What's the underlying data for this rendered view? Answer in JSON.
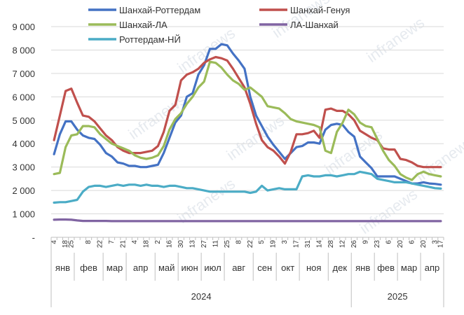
{
  "chart_data": {
    "type": "line",
    "ylim": [
      0,
      9000
    ],
    "y_ticks": [
      {
        "value": 0,
        "label": "-"
      },
      {
        "value": 1000,
        "label": "1 000"
      },
      {
        "value": 2000,
        "label": "2 000"
      },
      {
        "value": 3000,
        "label": "3 000"
      },
      {
        "value": 4000,
        "label": "4 000"
      },
      {
        "value": 5000,
        "label": "5 000"
      },
      {
        "value": 6000,
        "label": "6 000"
      },
      {
        "value": 7000,
        "label": "7 000"
      },
      {
        "value": 8000,
        "label": "8 000"
      },
      {
        "value": 9000,
        "label": "9 000"
      }
    ],
    "grid": "horizontal",
    "legend_position": "top",
    "x_count": 68,
    "day_labels": [
      {
        "i": 0,
        "label": "4"
      },
      {
        "i": 2,
        "label": "18"
      },
      {
        "i": 3,
        "label": "25"
      },
      {
        "i": 6,
        "label": "8"
      },
      {
        "i": 8,
        "label": "22"
      },
      {
        "i": 10,
        "label": "7"
      },
      {
        "i": 12,
        "label": "21"
      },
      {
        "i": 14,
        "label": "4"
      },
      {
        "i": 16,
        "label": "18"
      },
      {
        "i": 18,
        "label": "2"
      },
      {
        "i": 20,
        "label": "16"
      },
      {
        "i": 22,
        "label": "30"
      },
      {
        "i": 24,
        "label": "13"
      },
      {
        "i": 26,
        "label": "27"
      },
      {
        "i": 28,
        "label": "11"
      },
      {
        "i": 30,
        "label": "25"
      },
      {
        "i": 32,
        "label": "8"
      },
      {
        "i": 34,
        "label": "22"
      },
      {
        "i": 36,
        "label": "5"
      },
      {
        "i": 38,
        "label": "19"
      },
      {
        "i": 40,
        "label": "3"
      },
      {
        "i": 42,
        "label": "17"
      },
      {
        "i": 44,
        "label": "31"
      },
      {
        "i": 46,
        "label": "14"
      },
      {
        "i": 48,
        "label": "28"
      },
      {
        "i": 50,
        "label": "12"
      },
      {
        "i": 52,
        "label": "26"
      },
      {
        "i": 54,
        "label": "9"
      },
      {
        "i": 56,
        "label": "23"
      },
      {
        "i": 58,
        "label": "6"
      },
      {
        "i": 60,
        "label": "20"
      },
      {
        "i": 62,
        "label": "6"
      },
      {
        "i": 64,
        "label": "20"
      },
      {
        "i": 66,
        "label": "3"
      },
      {
        "i": 67,
        "label": "17"
      }
    ],
    "months": [
      {
        "label": "янв",
        "start": 0,
        "end": 4
      },
      {
        "label": "фев",
        "start": 4,
        "end": 9
      },
      {
        "label": "мар",
        "start": 9,
        "end": 13
      },
      {
        "label": "апр",
        "start": 13,
        "end": 18
      },
      {
        "label": "май",
        "start": 18,
        "end": 22
      },
      {
        "label": "июн",
        "start": 22,
        "end": 26
      },
      {
        "label": "июл",
        "start": 26,
        "end": 30
      },
      {
        "label": "авг",
        "start": 30,
        "end": 35
      },
      {
        "label": "сен",
        "start": 35,
        "end": 39
      },
      {
        "label": "окт",
        "start": 39,
        "end": 43
      },
      {
        "label": "ноя",
        "start": 43,
        "end": 48
      },
      {
        "label": "дек",
        "start": 48,
        "end": 52
      },
      {
        "label": "янв",
        "start": 52,
        "end": 56
      },
      {
        "label": "фев",
        "start": 56,
        "end": 60
      },
      {
        "label": "мар",
        "start": 60,
        "end": 64
      },
      {
        "label": "апр",
        "start": 64,
        "end": 68
      }
    ],
    "years": [
      {
        "label": "2024",
        "start": 0,
        "end": 52
      },
      {
        "label": "2025",
        "start": 52,
        "end": 68
      }
    ],
    "watermark": "infranews",
    "series": [
      {
        "name": "Шанхай-Роттердам",
        "color": "#4472c4",
        "legend_slot": "left-1",
        "values": [
          3550,
          4400,
          4950,
          4950,
          4600,
          4350,
          4250,
          4200,
          3950,
          3600,
          3450,
          3200,
          3150,
          3050,
          3050,
          3000,
          3000,
          3050,
          3100,
          3600,
          4250,
          4900,
          5200,
          6000,
          6150,
          6950,
          7350,
          8050,
          8050,
          8250,
          8200,
          7850,
          7550,
          7200,
          6000,
          5200,
          4750,
          4300,
          3950,
          3650,
          3350,
          3600,
          3850,
          3900,
          4050,
          4050,
          4000,
          4600,
          4800,
          4850,
          4800,
          4500,
          4300,
          3450,
          3200,
          2950,
          2600,
          2600,
          2600,
          2600,
          2500,
          2400,
          2300,
          2300,
          2350,
          2300,
          2280,
          2250
        ]
      },
      {
        "name": "Шанхай-Генуя",
        "color": "#c0504d",
        "legend_slot": "right-1",
        "values": [
          4150,
          5200,
          6250,
          6350,
          5750,
          5200,
          5150,
          4950,
          4650,
          4350,
          4150,
          3850,
          3700,
          3600,
          3600,
          3600,
          3650,
          3700,
          3900,
          4500,
          5400,
          5650,
          6700,
          6950,
          7050,
          7200,
          7450,
          7600,
          7700,
          7650,
          7550,
          7200,
          6800,
          6400,
          5700,
          4850,
          4150,
          3850,
          3700,
          3450,
          3150,
          3650,
          4400,
          4400,
          4450,
          4550,
          4250,
          5450,
          5500,
          5400,
          5400,
          5250,
          5000,
          4550,
          4400,
          4250,
          4150,
          3800,
          3750,
          3750,
          3350,
          3300,
          3200,
          3050,
          3000,
          3000,
          3000,
          3000
        ]
      },
      {
        "name": "Шанхай-ЛА",
        "color": "#9bbb59",
        "legend_slot": "left-2",
        "values": [
          2700,
          2750,
          3850,
          4350,
          4400,
          4750,
          4750,
          4700,
          4400,
          4200,
          4000,
          3900,
          3800,
          3700,
          3500,
          3400,
          3350,
          3400,
          3500,
          3900,
          4600,
          5050,
          5300,
          5700,
          6000,
          6400,
          6650,
          7500,
          7450,
          7250,
          6950,
          6700,
          6550,
          6300,
          6400,
          6200,
          6000,
          5600,
          5550,
          5500,
          5300,
          5050,
          4950,
          4900,
          4850,
          4800,
          4700,
          3700,
          3600,
          4500,
          4900,
          5450,
          5250,
          4900,
          4750,
          4700,
          4200,
          3700,
          3300,
          3050,
          2700,
          2550,
          2450,
          2700,
          2800,
          2700,
          2650,
          2600
        ]
      },
      {
        "name": "ЛА-Шанхай",
        "color": "#8064a2",
        "legend_slot": "right-2",
        "values": [
          750,
          760,
          760,
          750,
          720,
          700,
          700,
          700,
          700,
          700,
          690,
          690,
          690,
          690,
          690,
          690,
          690,
          690,
          690,
          690,
          690,
          690,
          690,
          690,
          690,
          690,
          690,
          690,
          690,
          690,
          690,
          690,
          690,
          690,
          690,
          690,
          690,
          690,
          690,
          690,
          690,
          690,
          690,
          690,
          690,
          690,
          690,
          690,
          690,
          690,
          690,
          690,
          690,
          690,
          690,
          690,
          690,
          690,
          690,
          690,
          690,
          690,
          690,
          690,
          690,
          690,
          690,
          690
        ]
      },
      {
        "name": "Роттердам-НЙ",
        "color": "#4bacc6",
        "legend_slot": "left-3",
        "values": [
          1480,
          1500,
          1500,
          1550,
          1600,
          1950,
          2150,
          2200,
          2200,
          2150,
          2200,
          2250,
          2200,
          2250,
          2250,
          2200,
          2250,
          2200,
          2200,
          2150,
          2200,
          2200,
          2150,
          2100,
          2100,
          2050,
          2000,
          1950,
          1950,
          1950,
          1950,
          1950,
          1950,
          1950,
          1900,
          1950,
          2200,
          2000,
          2050,
          2100,
          2050,
          2050,
          2050,
          2600,
          2650,
          2600,
          2600,
          2650,
          2650,
          2600,
          2650,
          2700,
          2700,
          2800,
          2750,
          2700,
          2500,
          2450,
          2400,
          2350,
          2350,
          2350,
          2300,
          2250,
          2200,
          2150,
          2100,
          2080
        ]
      }
    ]
  }
}
